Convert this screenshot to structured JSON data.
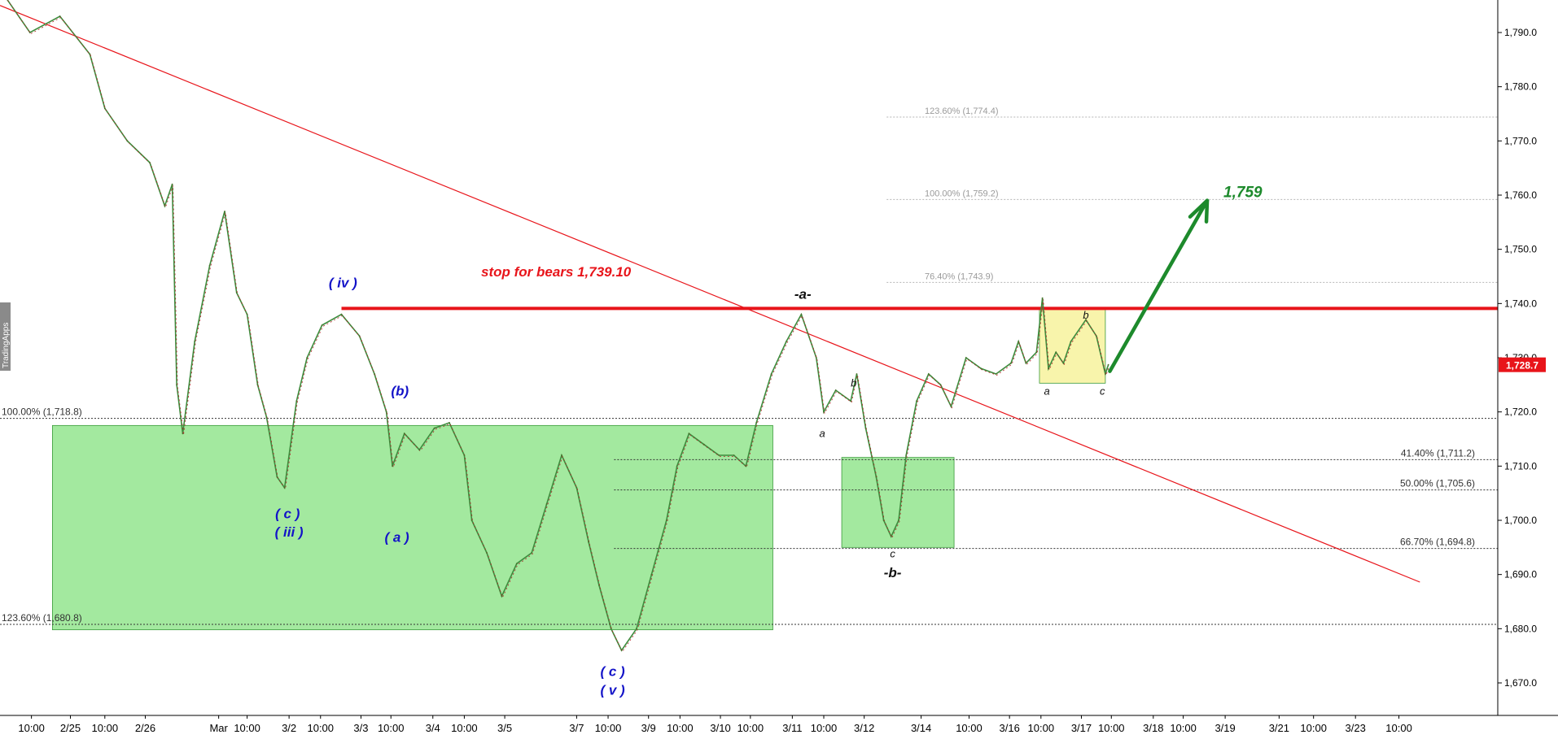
{
  "chart_data": {
    "type": "line",
    "title": "",
    "xlabel": "",
    "ylabel": "",
    "ylim": [
      1664,
      1796
    ],
    "y_ticks": [
      1670,
      1680,
      1690,
      1700,
      1710,
      1720,
      1730,
      1740,
      1750,
      1760,
      1770,
      1780,
      1790
    ],
    "y_tick_labels": [
      "1,670.0",
      "1,680.0",
      "1,690.0",
      "1,700.0",
      "1,710.0",
      "1,720.0",
      "1,730.0",
      "1,740.0",
      "1,750.0",
      "1,760.0",
      "1,770.0",
      "1,780.0",
      "1,790.0"
    ],
    "x_ticks": [
      {
        "label": "10:00",
        "i": 0
      },
      {
        "label": "2/25",
        "i": 1
      },
      {
        "label": "10:00",
        "i": 2
      },
      {
        "label": "2/26",
        "i": 3
      },
      {
        "label": "Mar",
        "i": 4
      },
      {
        "label": "10:00",
        "i": 5
      },
      {
        "label": "3/2",
        "i": 6
      },
      {
        "label": "10:00",
        "i": 7
      },
      {
        "label": "3/3",
        "i": 8
      },
      {
        "label": "10:00",
        "i": 9
      },
      {
        "label": "3/4",
        "i": 10
      },
      {
        "label": "10:00",
        "i": 11
      },
      {
        "label": "3/5",
        "i": 12
      },
      {
        "label": "3/7",
        "i": 13
      },
      {
        "label": "10:00",
        "i": 14
      },
      {
        "label": "3/9",
        "i": 15
      },
      {
        "label": "10:00",
        "i": 16
      },
      {
        "label": "3/10",
        "i": 17
      },
      {
        "label": "10:00",
        "i": 18
      },
      {
        "label": "3/11",
        "i": 19
      },
      {
        "label": "10:00",
        "i": 20
      },
      {
        "label": "3/12",
        "i": 21
      },
      {
        "label": "3/14",
        "i": 22
      },
      {
        "label": "10:00",
        "i": 23
      },
      {
        "label": "3/16",
        "i": 24
      },
      {
        "label": "10:00",
        "i": 25
      },
      {
        "label": "3/17",
        "i": 26
      },
      {
        "label": "10:00",
        "i": 27
      },
      {
        "label": "3/18",
        "i": 28
      },
      {
        "label": "10:00",
        "i": 29
      },
      {
        "label": "3/19",
        "i": 30
      },
      {
        "label": "3/21",
        "i": 31
      },
      {
        "label": "10:00",
        "i": 32
      },
      {
        "label": "3/23",
        "i": 33
      },
      {
        "label": "10:00",
        "i": 34
      }
    ],
    "x_tick_fracs": [
      0.021,
      0.047,
      0.07,
      0.097,
      0.146,
      0.165,
      0.193,
      0.214,
      0.241,
      0.261,
      0.289,
      0.31,
      0.337,
      0.385,
      0.406,
      0.433,
      0.454,
      0.481,
      0.501,
      0.529,
      0.55,
      0.577,
      0.615,
      0.647,
      0.674,
      0.695,
      0.722,
      0.742,
      0.77,
      0.79,
      0.818,
      0.854,
      0.877,
      0.905,
      0.934
    ],
    "series": [
      {
        "values": [
          [
            0.0,
            1798
          ],
          [
            0.02,
            1790
          ],
          [
            0.04,
            1793
          ],
          [
            0.06,
            1786
          ],
          [
            0.07,
            1776
          ],
          [
            0.085,
            1770
          ],
          [
            0.1,
            1766
          ],
          [
            0.11,
            1758
          ],
          [
            0.115,
            1762
          ],
          [
            0.118,
            1725
          ],
          [
            0.122,
            1716
          ],
          [
            0.13,
            1733
          ],
          [
            0.14,
            1747
          ],
          [
            0.15,
            1757
          ],
          [
            0.158,
            1742
          ],
          [
            0.165,
            1738
          ],
          [
            0.172,
            1725
          ],
          [
            0.178,
            1719
          ],
          [
            0.185,
            1708
          ],
          [
            0.19,
            1706
          ],
          [
            0.198,
            1722
          ],
          [
            0.205,
            1730
          ],
          [
            0.215,
            1736
          ],
          [
            0.228,
            1738
          ],
          [
            0.24,
            1734
          ],
          [
            0.25,
            1727
          ],
          [
            0.258,
            1720
          ],
          [
            0.262,
            1710
          ],
          [
            0.27,
            1716
          ],
          [
            0.28,
            1713
          ],
          [
            0.29,
            1717
          ],
          [
            0.3,
            1718
          ],
          [
            0.31,
            1712
          ],
          [
            0.315,
            1700
          ],
          [
            0.325,
            1694
          ],
          [
            0.335,
            1686
          ],
          [
            0.345,
            1692
          ],
          [
            0.355,
            1694
          ],
          [
            0.365,
            1703
          ],
          [
            0.375,
            1712
          ],
          [
            0.385,
            1706
          ],
          [
            0.393,
            1696
          ],
          [
            0.4,
            1688
          ],
          [
            0.408,
            1680
          ],
          [
            0.415,
            1676
          ],
          [
            0.425,
            1680
          ],
          [
            0.435,
            1690
          ],
          [
            0.445,
            1700
          ],
          [
            0.452,
            1710
          ],
          [
            0.46,
            1716
          ],
          [
            0.47,
            1714
          ],
          [
            0.48,
            1712
          ],
          [
            0.49,
            1712
          ],
          [
            0.498,
            1710
          ],
          [
            0.505,
            1718
          ],
          [
            0.515,
            1727
          ],
          [
            0.525,
            1733
          ],
          [
            0.535,
            1738
          ],
          [
            0.545,
            1730
          ],
          [
            0.55,
            1720
          ],
          [
            0.558,
            1724
          ],
          [
            0.568,
            1722
          ],
          [
            0.572,
            1727
          ],
          [
            0.578,
            1717
          ],
          [
            0.585,
            1708
          ],
          [
            0.59,
            1700
          ],
          [
            0.595,
            1697
          ],
          [
            0.6,
            1700
          ],
          [
            0.605,
            1712
          ],
          [
            0.612,
            1722
          ],
          [
            0.62,
            1727
          ],
          [
            0.628,
            1725
          ],
          [
            0.635,
            1721
          ],
          [
            0.645,
            1730
          ],
          [
            0.655,
            1728
          ],
          [
            0.665,
            1727
          ],
          [
            0.675,
            1729
          ],
          [
            0.68,
            1733
          ],
          [
            0.685,
            1729
          ],
          [
            0.692,
            1731
          ],
          [
            0.696,
            1741
          ],
          [
            0.7,
            1728
          ],
          [
            0.705,
            1731
          ],
          [
            0.71,
            1729
          ],
          [
            0.715,
            1733
          ],
          [
            0.725,
            1737
          ],
          [
            0.732,
            1734
          ],
          [
            0.738,
            1727
          ],
          [
            0.74,
            1728.7
          ]
        ]
      }
    ],
    "fib_levels": [
      {
        "label": "100.00% (1,718.8)",
        "value": 1718.8
      },
      {
        "label": "123.60% (1,680.8)",
        "value": 1680.8
      },
      {
        "label": "41.40% (1,711.2)",
        "value": 1711.2
      },
      {
        "label": "50.00% (1,705.6)",
        "value": 1705.6
      },
      {
        "label": "66.70% (1,694.8)",
        "value": 1694.8
      },
      {
        "label": "76.40% (1,743.9)",
        "value": 1743.9
      },
      {
        "label": "100.00% (1,759.2)",
        "value": 1759.2
      },
      {
        "label": "123.60% (1,774.4)",
        "value": 1774.4
      }
    ],
    "stop_line": {
      "value": 1739.1,
      "label": "stop for bears 1,739.10",
      "color": "#e8141a"
    },
    "trendline": {
      "from": [
        0.0,
        1795
      ],
      "to": [
        0.948,
        1688.6
      ],
      "color": "#e8141a"
    },
    "target": {
      "label": "1,759",
      "value": 1759,
      "color": "#1d8a2c"
    },
    "last_price": {
      "label": "1,728.7",
      "value": 1728.7,
      "color": "#e8141a"
    },
    "zones": [
      {
        "x": [
          0.035,
          0.516
        ],
        "y": [
          1679.8,
          1717.5
        ],
        "color": "#7fe07a"
      },
      {
        "x": [
          0.562,
          0.637
        ],
        "y": [
          1695,
          1711.6
        ],
        "color": "#7fe07a"
      },
      {
        "x": [
          0.694,
          0.738
        ],
        "y": [
          1725.3,
          1739
        ],
        "color": "#f5f08a"
      }
    ],
    "wave_labels": [
      {
        "text": "( iv )",
        "x": 0.229,
        "y": 1743,
        "color": "#1313c8"
      },
      {
        "text": "(b)",
        "x": 0.267,
        "y": 1723,
        "color": "#1313c8"
      },
      {
        "text": "( c )",
        "x": 0.192,
        "y": 1700.4,
        "color": "#1313c8"
      },
      {
        "text": "( iii )",
        "x": 0.193,
        "y": 1697,
        "color": "#1313c8"
      },
      {
        "text": "( a )",
        "x": 0.265,
        "y": 1696,
        "color": "#1313c8"
      },
      {
        "text": "( c )",
        "x": 0.409,
        "y": 1671.3,
        "color": "#1313c8"
      },
      {
        "text": "( v )",
        "x": 0.409,
        "y": 1667.8,
        "color": "#1313c8"
      },
      {
        "text": "-a-",
        "x": 0.536,
        "y": 1740.9,
        "color": "#111111"
      },
      {
        "text": "a",
        "x": 0.549,
        "y": 1715.4,
        "color": "#111111"
      },
      {
        "text": "b",
        "x": 0.57,
        "y": 1724.7,
        "color": "#111111"
      },
      {
        "text": "c",
        "x": 0.596,
        "y": 1693.2,
        "color": "#111111"
      },
      {
        "text": "-b-",
        "x": 0.596,
        "y": 1689.5,
        "color": "#111111"
      },
      {
        "text": "a",
        "x": 0.699,
        "y": 1723.2,
        "color": "#111111"
      },
      {
        "text": "b",
        "x": 0.725,
        "y": 1737.2,
        "color": "#111111"
      },
      {
        "text": "c",
        "x": 0.736,
        "y": 1723.2,
        "color": "#111111"
      }
    ],
    "watermark": "TradingApps"
  }
}
